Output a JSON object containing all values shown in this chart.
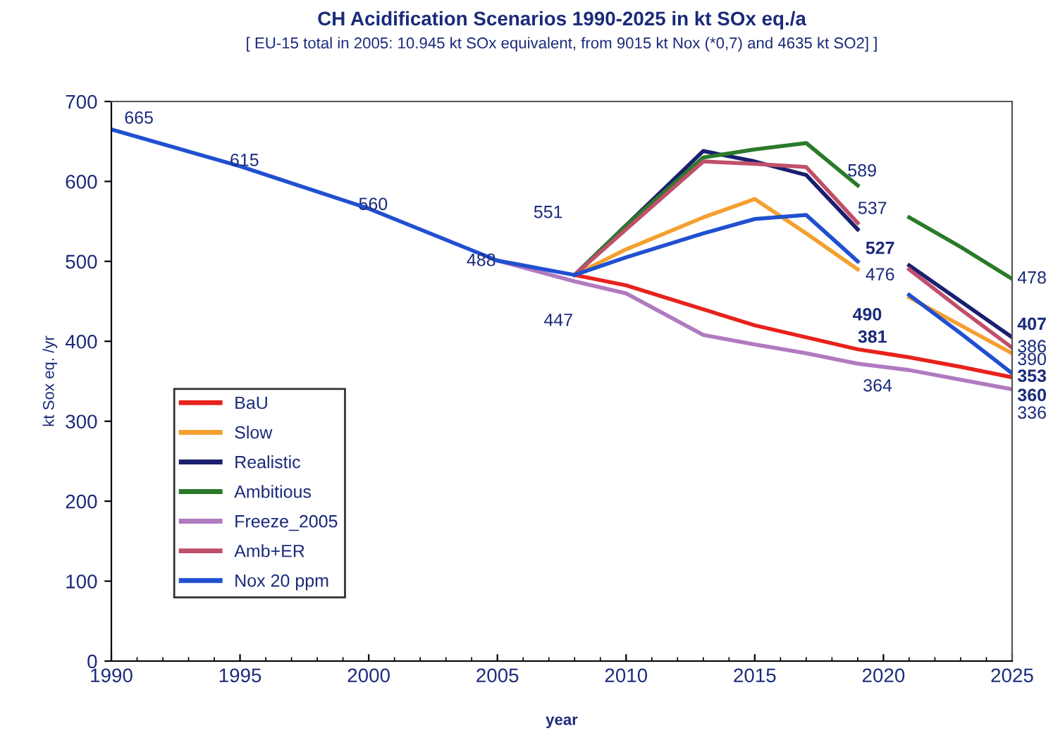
{
  "chart_data": {
    "type": "line",
    "title": "CH Acidification Scenarios 1990-2025 in kt SOx eq./a",
    "subtitle": "[ EU-15 total in 2005: 10.945 kt SOx equivalent, from 9015 kt Nox (*0,7) and 4635 kt SO2] ]",
    "xlabel": "year",
    "ylabel": "kt Sox eq. /yr",
    "xlim": [
      1990,
      2025
    ],
    "xticks": [
      1990,
      1995,
      2000,
      2005,
      2010,
      2015,
      2020,
      2025
    ],
    "ylim": [
      0,
      700
    ],
    "yticks": [
      0,
      100,
      200,
      300,
      400,
      500,
      600,
      700
    ],
    "grid": false,
    "legend": "left",
    "marker": "none",
    "line_style": "solid",
    "series": [
      {
        "name": "BaU",
        "color": "#e8221c",
        "x": [
          2008,
          2010,
          2013,
          2015,
          2017,
          2019,
          2021,
          2023,
          2025
        ],
        "values": [
          483,
          470,
          440,
          420,
          405,
          390,
          380,
          368,
          355
        ]
      },
      {
        "name": "Slow",
        "color": "#f4a030",
        "x": [
          2008,
          2010,
          2013,
          2015,
          2017,
          2019,
          2020,
          2021,
          2023,
          2025
        ],
        "values": [
          483,
          515,
          555,
          578,
          535,
          490,
          null,
          455,
          420,
          385
        ]
      },
      {
        "name": "Realistic",
        "color": "#1a1f6e",
        "x": [
          2008,
          2010,
          2013,
          2015,
          2017,
          2019,
          2020,
          2021,
          2023,
          2025
        ],
        "values": [
          483,
          545,
          638,
          625,
          608,
          540,
          null,
          495,
          450,
          405
        ]
      },
      {
        "name": "Ambitious",
        "color": "#2a7a2a",
        "x": [
          2008,
          2010,
          2013,
          2015,
          2017,
          2019,
          2020,
          2021,
          2023,
          2025
        ],
        "values": [
          483,
          545,
          630,
          640,
          648,
          595,
          null,
          555,
          518,
          478
        ]
      },
      {
        "name": "Freeze_2005",
        "color": "#b07ac0",
        "x": [
          2005,
          2008,
          2010,
          2013,
          2015,
          2017,
          2019,
          2021,
          2023,
          2025
        ],
        "values": [
          501,
          475,
          460,
          408,
          396,
          385,
          372,
          364,
          352,
          340
        ]
      },
      {
        "name": "Amb+ER",
        "color": "#c0506a",
        "x": [
          2008,
          2010,
          2013,
          2015,
          2017,
          2019,
          2020,
          2021,
          2023,
          2025
        ],
        "values": [
          483,
          540,
          625,
          622,
          618,
          548,
          null,
          490,
          440,
          392
        ]
      },
      {
        "name": "Nox 20 ppm",
        "color": "#2050d0",
        "x": [
          1990,
          1995,
          2000,
          2005,
          2008,
          2010,
          2013,
          2015,
          2017,
          2019,
          2020,
          2021,
          2023,
          2025
        ],
        "values": [
          665,
          619,
          566,
          501,
          483,
          505,
          535,
          553,
          558,
          500,
          null,
          458,
          410,
          360
        ]
      }
    ],
    "annotations": [
      "665",
      "615",
      "560",
      "488",
      "551",
      "447",
      "589",
      "537",
      "527",
      "476",
      "490",
      "381",
      "364",
      "478",
      "407",
      "386",
      "390",
      "353",
      "360",
      "336"
    ]
  }
}
